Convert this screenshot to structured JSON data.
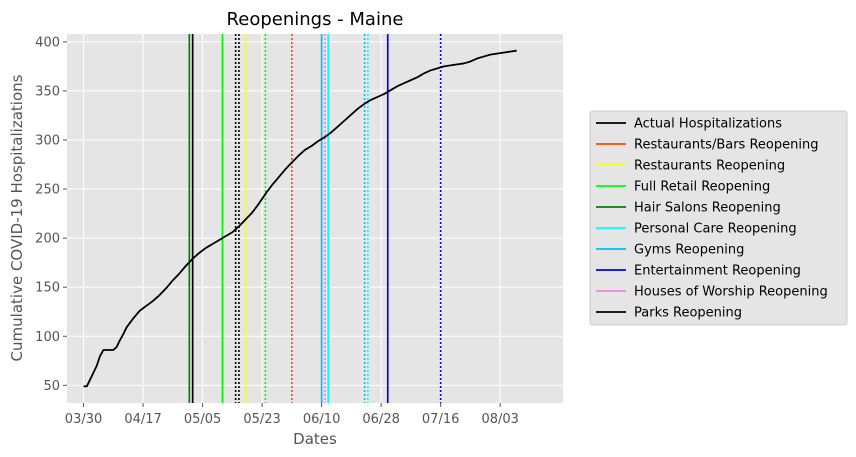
{
  "chart_data": {
    "type": "line",
    "title": "Reopenings - Maine",
    "xlabel": "Dates",
    "ylabel": "Cumulative COVID-19 Hospitalizations",
    "x_ticks": [
      "03/30",
      "04/17",
      "05/05",
      "05/23",
      "06/10",
      "06/28",
      "07/16",
      "08/03"
    ],
    "y_ticks": [
      50,
      100,
      150,
      200,
      250,
      300,
      350,
      400
    ],
    "xlim": [
      "2020-03-25",
      "2020-08-22"
    ],
    "ylim": [
      32,
      408
    ],
    "grid": true,
    "legend_position": "right",
    "series": [
      {
        "name": "Actual Hospitalizations",
        "color": "#000000",
        "points": [
          [
            "2020-03-30",
            49
          ],
          [
            "2020-03-31",
            49
          ],
          [
            "2020-04-01",
            56
          ],
          [
            "2020-04-02",
            63
          ],
          [
            "2020-04-03",
            70
          ],
          [
            "2020-04-04",
            80
          ],
          [
            "2020-04-05",
            86
          ],
          [
            "2020-04-06",
            86
          ],
          [
            "2020-04-07",
            86
          ],
          [
            "2020-04-08",
            86
          ],
          [
            "2020-04-09",
            89
          ],
          [
            "2020-04-10",
            96
          ],
          [
            "2020-04-11",
            102
          ],
          [
            "2020-04-12",
            109
          ],
          [
            "2020-04-14",
            118
          ],
          [
            "2020-04-16",
            126
          ],
          [
            "2020-04-18",
            131
          ],
          [
            "2020-04-20",
            136
          ],
          [
            "2020-04-22",
            142
          ],
          [
            "2020-04-24",
            149
          ],
          [
            "2020-04-26",
            157
          ],
          [
            "2020-04-28",
            164
          ],
          [
            "2020-04-30",
            172
          ],
          [
            "2020-05-02",
            179
          ],
          [
            "2020-05-04",
            185
          ],
          [
            "2020-05-06",
            190
          ],
          [
            "2020-05-08",
            194
          ],
          [
            "2020-05-10",
            198
          ],
          [
            "2020-05-12",
            202
          ],
          [
            "2020-05-14",
            206
          ],
          [
            "2020-05-16",
            212
          ],
          [
            "2020-05-18",
            219
          ],
          [
            "2020-05-20",
            226
          ],
          [
            "2020-05-22",
            235
          ],
          [
            "2020-05-24",
            245
          ],
          [
            "2020-05-26",
            254
          ],
          [
            "2020-05-28",
            262
          ],
          [
            "2020-05-30",
            270
          ],
          [
            "2020-06-01",
            277
          ],
          [
            "2020-06-03",
            284
          ],
          [
            "2020-06-05",
            290
          ],
          [
            "2020-06-07",
            294
          ],
          [
            "2020-06-09",
            299
          ],
          [
            "2020-06-11",
            303
          ],
          [
            "2020-06-13",
            308
          ],
          [
            "2020-06-15",
            314
          ],
          [
            "2020-06-17",
            320
          ],
          [
            "2020-06-19",
            326
          ],
          [
            "2020-06-21",
            332
          ],
          [
            "2020-06-23",
            337
          ],
          [
            "2020-06-25",
            341
          ],
          [
            "2020-06-27",
            344
          ],
          [
            "2020-06-29",
            347
          ],
          [
            "2020-07-01",
            351
          ],
          [
            "2020-07-03",
            355
          ],
          [
            "2020-07-05",
            358
          ],
          [
            "2020-07-07",
            361
          ],
          [
            "2020-07-09",
            364
          ],
          [
            "2020-07-11",
            368
          ],
          [
            "2020-07-13",
            371
          ],
          [
            "2020-07-15",
            373
          ],
          [
            "2020-07-17",
            375
          ],
          [
            "2020-07-19",
            376
          ],
          [
            "2020-07-21",
            377
          ],
          [
            "2020-07-23",
            378
          ],
          [
            "2020-07-25",
            380
          ],
          [
            "2020-07-27",
            383
          ],
          [
            "2020-07-29",
            385
          ],
          [
            "2020-07-31",
            387
          ],
          [
            "2020-08-02",
            388
          ],
          [
            "2020-08-04",
            389
          ],
          [
            "2020-08-06",
            390
          ],
          [
            "2020-08-08",
            391
          ]
        ]
      }
    ],
    "reopenings": [
      {
        "name": "Restaurants/Bars Reopening",
        "color": "#ff4500",
        "dates": [],
        "dotted_dates": [
          "2020-06-01"
        ]
      },
      {
        "name": "Restaurants Reopening",
        "color": "#ffff00",
        "dates": [
          "2020-05-18"
        ],
        "dotted_dates": []
      },
      {
        "name": "Full Retail Reopening",
        "color": "#00ff00",
        "dates": [
          "2020-05-11"
        ],
        "dotted_dates": [
          "2020-05-24"
        ]
      },
      {
        "name": "Hair Salons Reopening",
        "color": "#008000",
        "dates": [
          "2020-05-01"
        ],
        "dotted_dates": []
      },
      {
        "name": "Personal Care Reopening",
        "color": "#00ffff",
        "dates": [
          "2020-06-12"
        ],
        "dotted_dates": [
          "2020-06-24"
        ]
      },
      {
        "name": "Gyms Reopening",
        "color": "#00bfff",
        "dates": [
          "2020-06-10"
        ],
        "dotted_dates": [
          "2020-06-23"
        ]
      },
      {
        "name": "Entertainment Reopening",
        "color": "#0000ff",
        "dates": [
          "2020-06-30"
        ],
        "dotted_dates": [
          "2020-07-16"
        ]
      },
      {
        "name": "Houses of Worship Reopening",
        "color": "#ee82ee",
        "dates": [],
        "dotted_dates": [
          "2020-06-11"
        ]
      },
      {
        "name": "Parks Reopening",
        "color": "#000000",
        "dates": [
          "2020-05-02"
        ],
        "dotted_dates": [
          "2020-05-15",
          "2020-05-16"
        ]
      }
    ]
  }
}
